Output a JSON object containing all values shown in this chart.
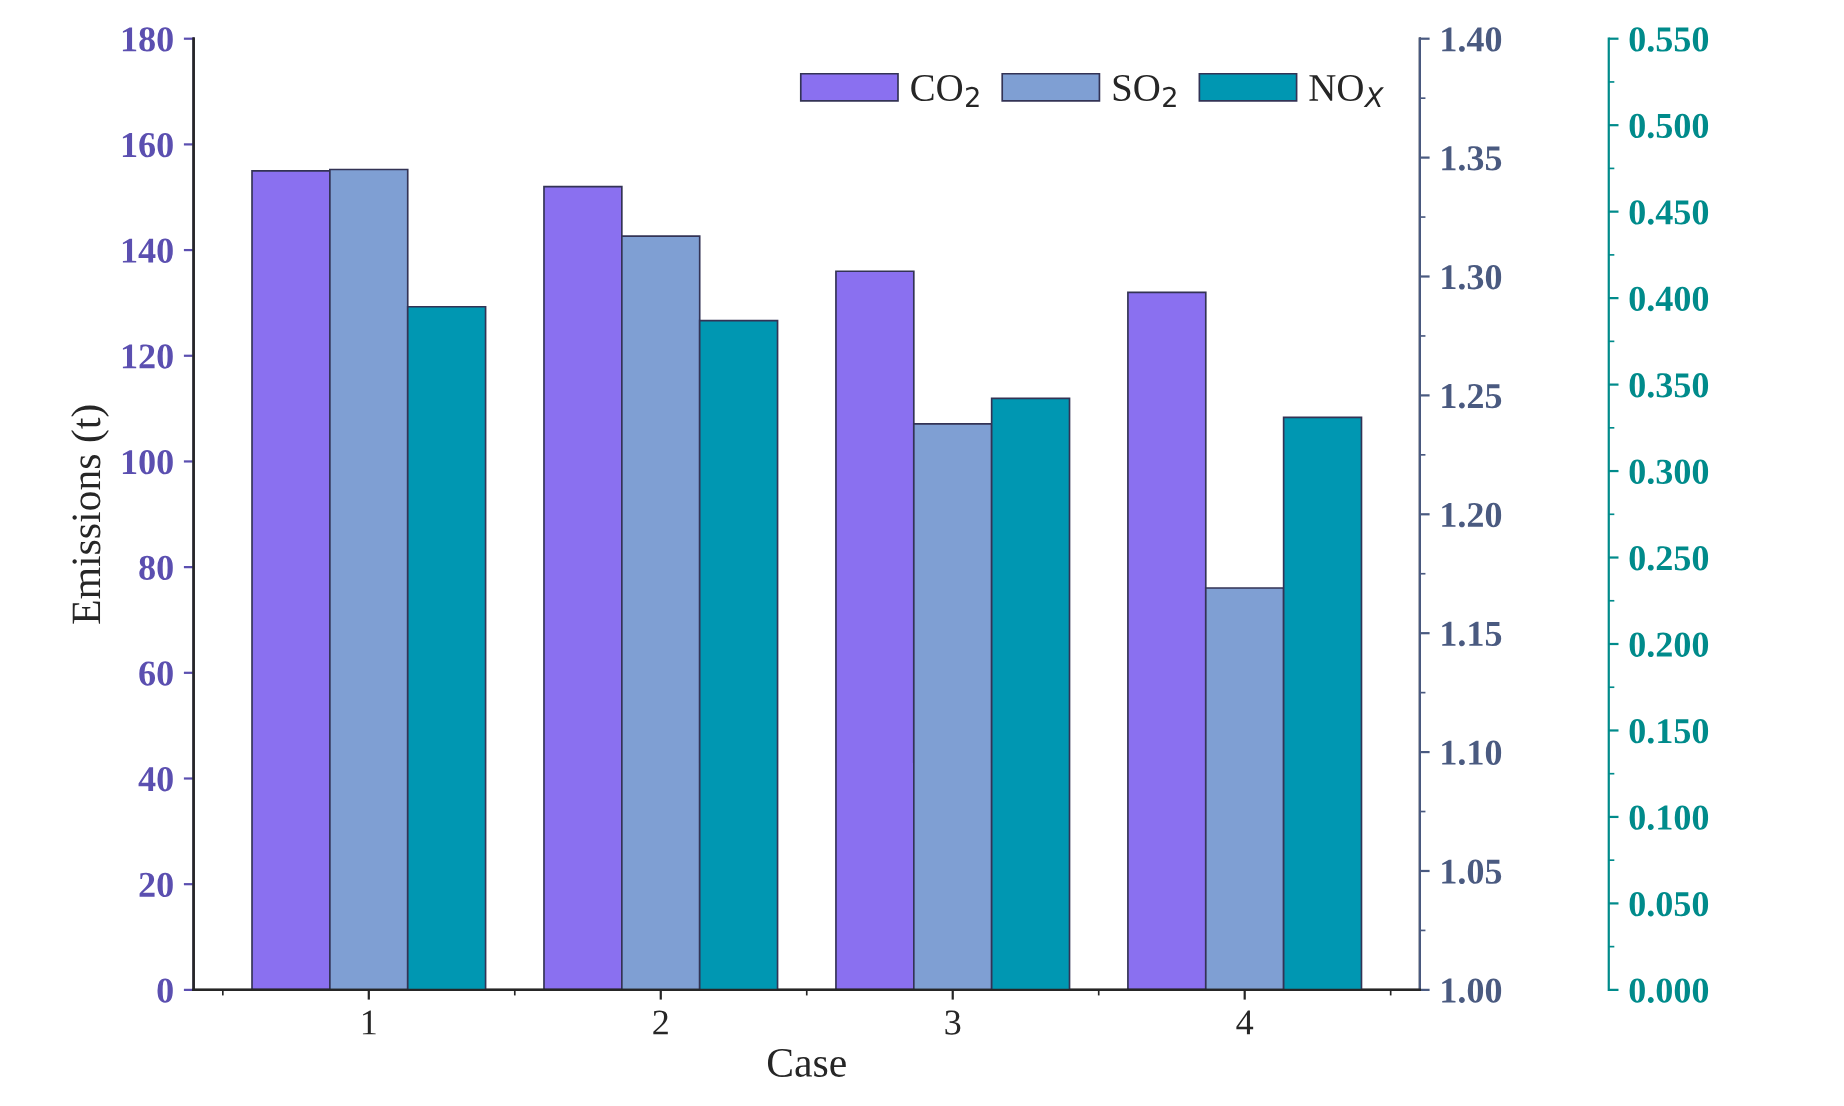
{
  "chart_data": {
    "type": "bar",
    "xlabel": "Case",
    "ylabel": "Emissions (t)",
    "categories": [
      "1",
      "2",
      "3",
      "4"
    ],
    "series": [
      {
        "name": "CO$_{2}$",
        "color": "#8a70f0",
        "values": [
          155,
          152,
          136,
          132
        ]
      },
      {
        "name": "SO$_{2}$",
        "color": "#7f9fd3",
        "values": [
          1.345,
          1.317,
          1.238,
          1.169
        ],
        "axis": "y2"
      },
      {
        "name": "NO$_{X}$",
        "color": "#0097b2",
        "values": [
          0.395,
          0.387,
          0.342,
          0.331
        ],
        "axis": "y3"
      }
    ],
    "ylim": [
      0,
      180
    ],
    "yticks": [
      0,
      20,
      40,
      60,
      80,
      100,
      120,
      140,
      160,
      180
    ],
    "y2lim": [
      1.0,
      1.4
    ],
    "y2ticks": [
      {
        "value": 1.0,
        "label": "1.00"
      },
      {
        "value": 1.05,
        "label": "1.05"
      },
      {
        "value": 1.1,
        "label": "1.10"
      },
      {
        "value": 1.15,
        "label": "1.15"
      },
      {
        "value": 1.2,
        "label": "1.20"
      },
      {
        "value": 1.25,
        "label": "1.25"
      },
      {
        "value": 1.3,
        "label": "1.30"
      },
      {
        "value": 1.35,
        "label": "1.35"
      },
      {
        "value": 1.4,
        "label": "1.40"
      }
    ],
    "y3lim": [
      0,
      0.55
    ],
    "y3ticks": [
      {
        "value": 0,
        "label": "0.000"
      },
      {
        "value": 0.05,
        "label": "0.050"
      },
      {
        "value": 0.1,
        "label": "0.100"
      },
      {
        "value": 0.15,
        "label": "0.150"
      },
      {
        "value": 0.2,
        "label": "0.200"
      },
      {
        "value": 0.25,
        "label": "0.250"
      },
      {
        "value": 0.3,
        "label": "0.300"
      },
      {
        "value": 0.35,
        "label": "0.350"
      },
      {
        "value": 0.4,
        "label": "0.400"
      },
      {
        "value": 0.45,
        "label": "0.450"
      },
      {
        "value": 0.5,
        "label": "0.500"
      },
      {
        "value": 0.55,
        "label": "0.550"
      }
    ],
    "legend": "top right",
    "grid": false
  }
}
